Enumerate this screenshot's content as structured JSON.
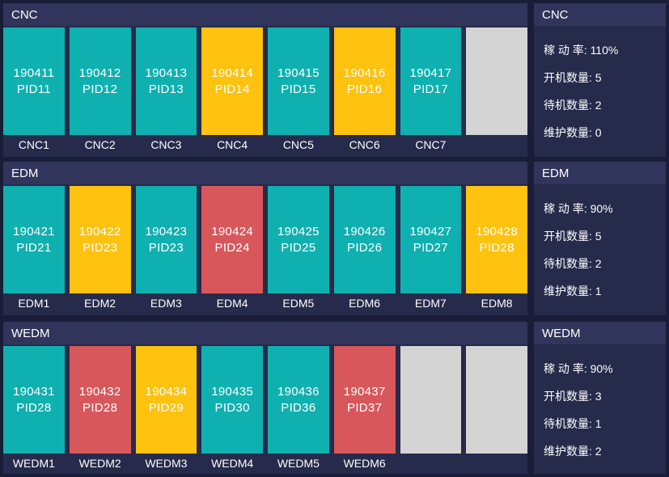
{
  "colors": {
    "page_bg": "#1A1D38",
    "section_bg": "#262A4B",
    "header_bg": "#31355B",
    "running": "#0FB0B0",
    "standby": "#FFC20E",
    "maintenance": "#D8575B",
    "empty": "#D4D4D4",
    "text": "#FFFFFF"
  },
  "separator": ": ",
  "sections": [
    {
      "id": "cnc",
      "title": "CNC",
      "machines": [
        {
          "code": "190411",
          "pid": "PID11",
          "label": "CNC1",
          "status": "running"
        },
        {
          "code": "190412",
          "pid": "PID12",
          "label": "CNC2",
          "status": "running"
        },
        {
          "code": "190413",
          "pid": "PID13",
          "label": "CNC3",
          "status": "running"
        },
        {
          "code": "190414",
          "pid": "PID14",
          "label": "CNC4",
          "status": "standby"
        },
        {
          "code": "190415",
          "pid": "PID15",
          "label": "CNC5",
          "status": "running"
        },
        {
          "code": "190416",
          "pid": "PID16",
          "label": "CNC6",
          "status": "standby"
        },
        {
          "code": "190417",
          "pid": "PID17",
          "label": "CNC7",
          "status": "running"
        },
        {
          "code": "",
          "pid": "",
          "label": "",
          "status": "empty"
        }
      ],
      "stats": [
        {
          "label": "稼 动 率",
          "value": "110%"
        },
        {
          "label": "开机数量",
          "value": "5"
        },
        {
          "label": "待机数量",
          "value": "2"
        },
        {
          "label": "维护数量",
          "value": "0"
        }
      ]
    },
    {
      "id": "edm",
      "title": "EDM",
      "machines": [
        {
          "code": "190421",
          "pid": "PID21",
          "label": "EDM1",
          "status": "running"
        },
        {
          "code": "190422",
          "pid": "PID23",
          "label": "EDM2",
          "status": "standby"
        },
        {
          "code": "190423",
          "pid": "PID23",
          "label": "EDM3",
          "status": "running"
        },
        {
          "code": "190424",
          "pid": "PID24",
          "label": "EDM4",
          "status": "maintenance"
        },
        {
          "code": "190425",
          "pid": "PID25",
          "label": "EDM5",
          "status": "running"
        },
        {
          "code": "190426",
          "pid": "PID26",
          "label": "EDM6",
          "status": "running"
        },
        {
          "code": "190427",
          "pid": "PID27",
          "label": "EDM7",
          "status": "running"
        },
        {
          "code": "190428",
          "pid": "PID28",
          "label": "EDM8",
          "status": "standby"
        }
      ],
      "stats": [
        {
          "label": "稼 动 率",
          "value": "90%"
        },
        {
          "label": "开机数量",
          "value": "5"
        },
        {
          "label": "待机数量",
          "value": "2"
        },
        {
          "label": "维护数量",
          "value": "1"
        }
      ]
    },
    {
      "id": "wedm",
      "title": "WEDM",
      "machines": [
        {
          "code": "190431",
          "pid": "PID28",
          "label": "WEDM1",
          "status": "running"
        },
        {
          "code": "190432",
          "pid": "PID28",
          "label": "WEDM2",
          "status": "maintenance"
        },
        {
          "code": "190434",
          "pid": "PID29",
          "label": "WEDM3",
          "status": "standby"
        },
        {
          "code": "190435",
          "pid": "PID30",
          "label": "WEDM4",
          "status": "running"
        },
        {
          "code": "190436",
          "pid": "PID36",
          "label": "WEDM5",
          "status": "running"
        },
        {
          "code": "190437",
          "pid": "PID37",
          "label": "WEDM6",
          "status": "maintenance"
        },
        {
          "code": "",
          "pid": "",
          "label": "",
          "status": "empty"
        },
        {
          "code": "",
          "pid": "",
          "label": "",
          "status": "empty"
        }
      ],
      "stats": [
        {
          "label": "稼 动 率",
          "value": "90%"
        },
        {
          "label": "开机数量",
          "value": "3"
        },
        {
          "label": "待机数量",
          "value": "1"
        },
        {
          "label": "维护数量",
          "value": "2"
        }
      ]
    }
  ]
}
